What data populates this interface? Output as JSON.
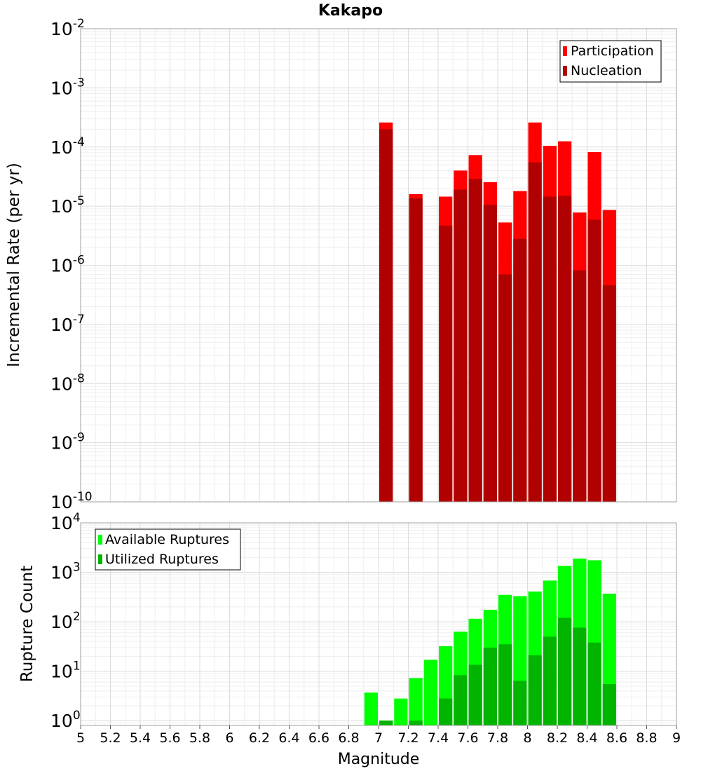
{
  "chart_data": [
    {
      "type": "bar",
      "title": "Kakapo",
      "ylabel": "Incremental Rate (per yr)",
      "yscale": "log",
      "ylim": [
        1e-10,
        0.01
      ],
      "xlim": [
        5,
        9
      ],
      "grid": true,
      "legend_position": "top-right",
      "x": [
        7.05,
        7.25,
        7.45,
        7.55,
        7.65,
        7.75,
        7.85,
        7.95,
        8.05,
        8.15,
        8.25,
        8.35,
        8.45,
        8.55
      ],
      "series": [
        {
          "name": "Participation",
          "color": "#ff0000",
          "values": [
            0.00026,
            1.6e-05,
            1.45e-05,
            4e-05,
            7.3e-05,
            2.55e-05,
            5.3e-06,
            1.8e-05,
            0.00026,
            0.000105,
            0.000125,
            7.8e-06,
            8.2e-05,
            8.6e-06
          ]
        },
        {
          "name": "Nucleation",
          "color": "#b00000",
          "values": [
            0.0002,
            1.35e-05,
            4.7e-06,
            1.9e-05,
            2.9e-05,
            1.05e-05,
            7e-07,
            2.8e-06,
            5.5e-05,
            1.45e-05,
            1.5e-05,
            8.2e-07,
            5.9e-06,
            4.6e-07
          ]
        }
      ]
    },
    {
      "type": "bar",
      "xlabel": "Magnitude",
      "ylabel": "Rupture Count",
      "yscale": "log",
      "ylim": [
        0.8,
        10000
      ],
      "xlim": [
        5,
        9
      ],
      "grid": true,
      "legend_position": "top-left",
      "x_ticks": [
        "5",
        "5.2",
        "5.4",
        "5.6",
        "5.8",
        "6",
        "6.2",
        "6.4",
        "6.6",
        "6.8",
        "7",
        "7.2",
        "7.4",
        "7.6",
        "7.8",
        "8",
        "8.2",
        "8.4",
        "8.6",
        "8.8",
        "9"
      ],
      "x": [
        6.95,
        7.05,
        7.15,
        7.25,
        7.35,
        7.45,
        7.55,
        7.65,
        7.75,
        7.85,
        7.95,
        8.05,
        8.15,
        8.25,
        8.35,
        8.45,
        8.55
      ],
      "series": [
        {
          "name": "Available Ruptures",
          "color": "#00ff00",
          "values": [
            3.7,
            1,
            2.8,
            7.3,
            17,
            32,
            63,
            115,
            175,
            350,
            330,
            410,
            680,
            1350,
            1900,
            1750,
            370
          ]
        },
        {
          "name": "Utilized Ruptures",
          "color": "#00b400",
          "values": [
            0,
            1,
            0,
            1,
            0,
            2.8,
            8.3,
            13.5,
            30,
            35,
            6.4,
            21,
            50,
            120,
            76,
            38,
            5.5
          ]
        }
      ]
    }
  ]
}
